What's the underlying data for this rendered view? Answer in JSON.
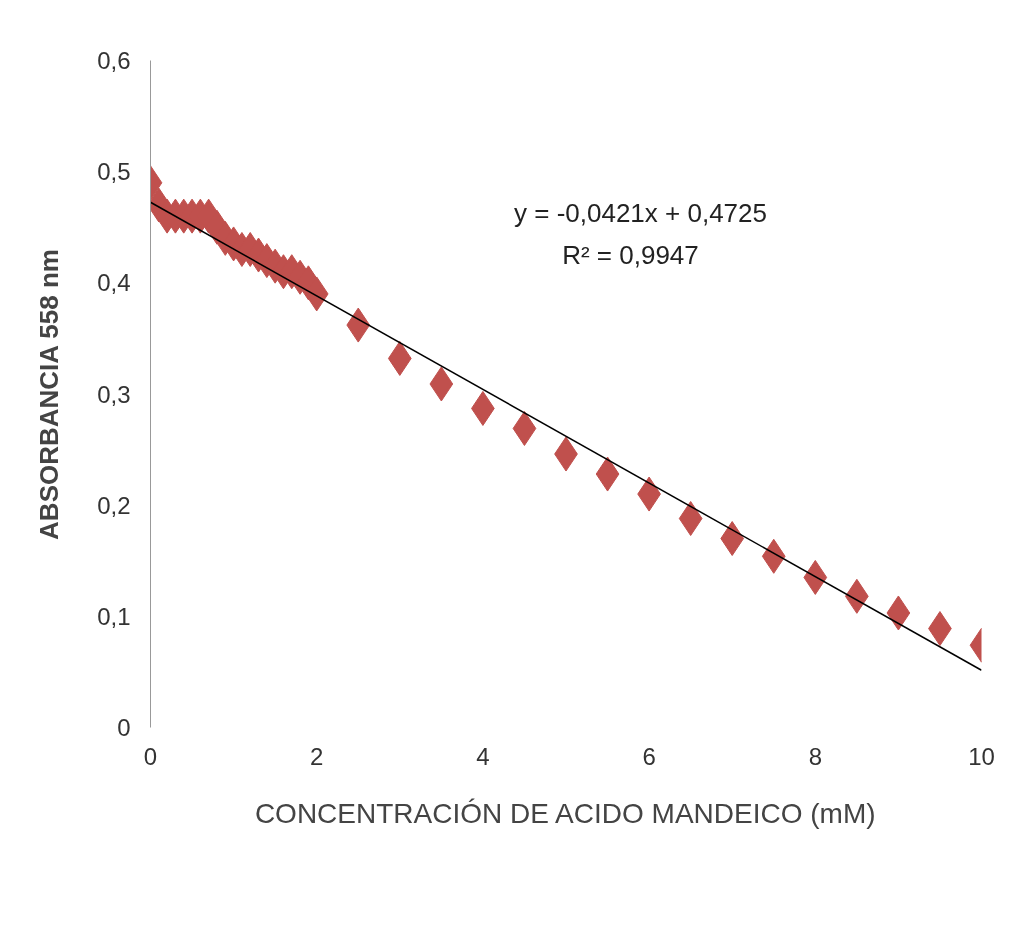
{
  "chart_data": {
    "type": "scatter",
    "xlabel": "CONCENTRACIÓN DE ACIDO MANDEICO (mM)",
    "ylabel": "ABSORBANCIA 558 nm",
    "annotations": [
      "y = -0,0421x + 0,4725",
      "R² = 0,9947"
    ],
    "marker": "diamond",
    "grid": false,
    "xlim": [
      0,
      10
    ],
    "ylim": [
      0,
      0.6
    ],
    "xticks": [
      0,
      2,
      4,
      6,
      8,
      10
    ],
    "yticks": [
      0,
      {
        "value": 0.1,
        "label": "0,1"
      },
      {
        "value": 0.2,
        "label": "0,2"
      },
      {
        "value": 0.3,
        "label": "0,3"
      },
      {
        "value": 0.4,
        "label": "0,4"
      },
      {
        "value": 0.5,
        "label": "0,5"
      },
      {
        "value": 0.6,
        "label": "0,6"
      }
    ],
    "series": [
      {
        "color": "#c0504d",
        "x": [
          0,
          0.1,
          0.2,
          0.3,
          0.4,
          0.5,
          0.6,
          0.7,
          0.8,
          0.9,
          1.0,
          1.1,
          1.2,
          1.3,
          1.4,
          1.5,
          1.6,
          1.7,
          1.8,
          1.9,
          2.0,
          2.5,
          3,
          3.5,
          4,
          4.5,
          5,
          5.5,
          6,
          6.5,
          7,
          7.5,
          8,
          8.5,
          9,
          9.5,
          10
        ],
        "values": [
          0.49,
          0.47,
          0.46,
          0.46,
          0.46,
          0.46,
          0.46,
          0.46,
          0.45,
          0.44,
          0.435,
          0.43,
          0.43,
          0.425,
          0.42,
          0.415,
          0.41,
          0.41,
          0.405,
          0.4,
          0.39,
          0.362,
          0.332,
          0.309,
          0.287,
          0.269,
          0.246,
          0.228,
          0.21,
          0.188,
          0.17,
          0.154,
          0.135,
          0.118,
          0.103,
          0.089,
          0.074
        ]
      },
      {
        "type": "line",
        "marker": "none",
        "color": "#000000",
        "x": [
          0,
          10
        ],
        "values": [
          0.4725,
          0.0515
        ]
      }
    ]
  }
}
